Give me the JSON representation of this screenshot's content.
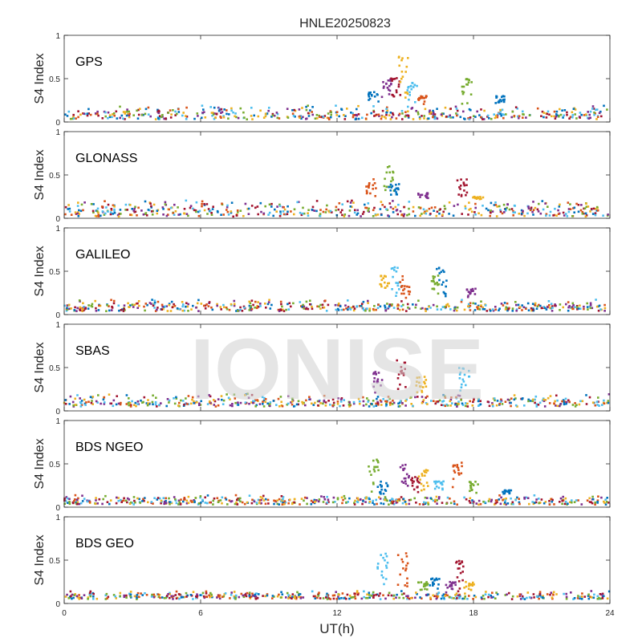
{
  "chart_data": {
    "type": "scatter",
    "title": "HNLE20250823",
    "xlabel": "UT(h)",
    "ylabel": "S4 Index",
    "xlim": [
      0,
      24
    ],
    "ylim": [
      0,
      1
    ],
    "xticks": [
      "0",
      "6",
      "12",
      "18",
      "24"
    ],
    "yticks": [
      "0",
      "0.5",
      "1"
    ],
    "watermark": "IONISE",
    "series_colors": [
      "#0072bd",
      "#d95319",
      "#edb120",
      "#7e2f8e",
      "#77ac30",
      "#4dbeee",
      "#a2142f"
    ],
    "panels": [
      {
        "name": "GPS",
        "baseline_range": [
          0.03,
          0.2
        ],
        "bursts": [
          {
            "t": 13.6,
            "peak": 0.35
          },
          {
            "t": 14.2,
            "peak": 0.5
          },
          {
            "t": 14.6,
            "peak": 0.6
          },
          {
            "t": 14.9,
            "peak": 0.8
          },
          {
            "t": 15.3,
            "peak": 0.45
          },
          {
            "t": 15.8,
            "peak": 0.3
          },
          {
            "t": 17.7,
            "peak": 0.5
          },
          {
            "t": 19.2,
            "peak": 0.3
          }
        ]
      },
      {
        "name": "GLONASS",
        "baseline_range": [
          0.02,
          0.22
        ],
        "bursts": [
          {
            "t": 13.5,
            "peak": 0.45
          },
          {
            "t": 14.3,
            "peak": 0.6
          },
          {
            "t": 14.5,
            "peak": 0.4
          },
          {
            "t": 15.8,
            "peak": 0.3
          },
          {
            "t": 17.5,
            "peak": 0.45
          },
          {
            "t": 18.2,
            "peak": 0.25
          }
        ]
      },
      {
        "name": "GALILEO",
        "baseline_range": [
          0.04,
          0.18
        ],
        "bursts": [
          {
            "t": 14.1,
            "peak": 0.45
          },
          {
            "t": 14.6,
            "peak": 0.55
          },
          {
            "t": 15.0,
            "peak": 0.45
          },
          {
            "t": 16.3,
            "peak": 0.45
          },
          {
            "t": 16.6,
            "peak": 0.55
          },
          {
            "t": 17.9,
            "peak": 0.3
          }
        ]
      },
      {
        "name": "SBAS",
        "baseline_range": [
          0.05,
          0.2
        ],
        "bursts": [
          {
            "t": 13.8,
            "peak": 0.45
          },
          {
            "t": 14.8,
            "peak": 0.6
          },
          {
            "t": 15.7,
            "peak": 0.4
          },
          {
            "t": 17.6,
            "peak": 0.5
          }
        ]
      },
      {
        "name": "BDS NGEO",
        "baseline_range": [
          0.03,
          0.15
        ],
        "bursts": [
          {
            "t": 13.6,
            "peak": 0.55
          },
          {
            "t": 14.0,
            "peak": 0.3
          },
          {
            "t": 15.0,
            "peak": 0.5
          },
          {
            "t": 15.4,
            "peak": 0.35
          },
          {
            "t": 15.8,
            "peak": 0.45
          },
          {
            "t": 16.5,
            "peak": 0.3
          },
          {
            "t": 17.3,
            "peak": 0.55
          },
          {
            "t": 18.0,
            "peak": 0.3
          },
          {
            "t": 19.5,
            "peak": 0.2
          }
        ]
      },
      {
        "name": "BDS GEO",
        "baseline_range": [
          0.05,
          0.15
        ],
        "bursts": [
          {
            "t": 14.0,
            "peak": 0.6
          },
          {
            "t": 14.9,
            "peak": 0.6
          },
          {
            "t": 15.8,
            "peak": 0.25
          },
          {
            "t": 16.3,
            "peak": 0.3
          },
          {
            "t": 17.0,
            "peak": 0.25
          },
          {
            "t": 17.4,
            "peak": 0.5
          },
          {
            "t": 17.8,
            "peak": 0.25
          }
        ]
      }
    ]
  }
}
